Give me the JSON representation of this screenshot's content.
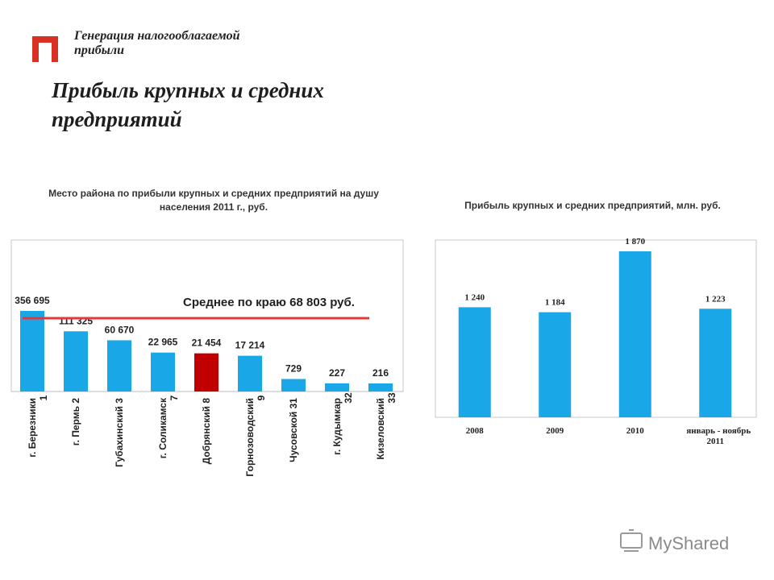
{
  "header": {
    "section_label": "Генерация налогооблагаемой прибыли",
    "title": "Прибыль крупных и средних предприятий"
  },
  "colors": {
    "bar": "#1aa7e8",
    "highlight_bar": "#c00000",
    "average_line": "#e03a3a",
    "logo": "#d93025"
  },
  "chart_data": [
    {
      "type": "bar",
      "title": "Место района по прибыли крупных и средних предприятий на душу населения 2011 г., руб.",
      "categories": [
        "г. Березники 1",
        "г. Пермь 2",
        "Губахинский 3",
        "г. Соликамск 7",
        "Добрянский 8",
        "Горнозоводский 9",
        "Чусовской 31",
        "г. Кудымкар 32",
        "Кизеловский 33"
      ],
      "values": [
        356695,
        111325,
        60670,
        22965,
        21454,
        17214,
        729,
        227,
        216
      ],
      "data_labels": [
        "356 695",
        "111 325",
        "60 670",
        "22 965",
        "21 454",
        "17 214",
        "729",
        "227",
        "216"
      ],
      "highlight_category": "Добрянский 8",
      "average": {
        "value": 68803,
        "label": "Среднее по краю 68 803 руб."
      },
      "xlabel": "",
      "ylabel": ""
    },
    {
      "type": "bar",
      "title": "Прибыль крупных и средних предприятий, млн. руб.",
      "categories": [
        "2008",
        "2009",
        "2010",
        "январь - ноябрь 2011"
      ],
      "values": [
        1240,
        1184,
        1870,
        1223
      ],
      "data_labels": [
        "1 240",
        "1 184",
        "1 870",
        "1 223"
      ],
      "xlabel": "",
      "ylabel": "",
      "ylim": [
        0,
        2000
      ]
    }
  ],
  "watermark": {
    "text": "MyShared"
  }
}
